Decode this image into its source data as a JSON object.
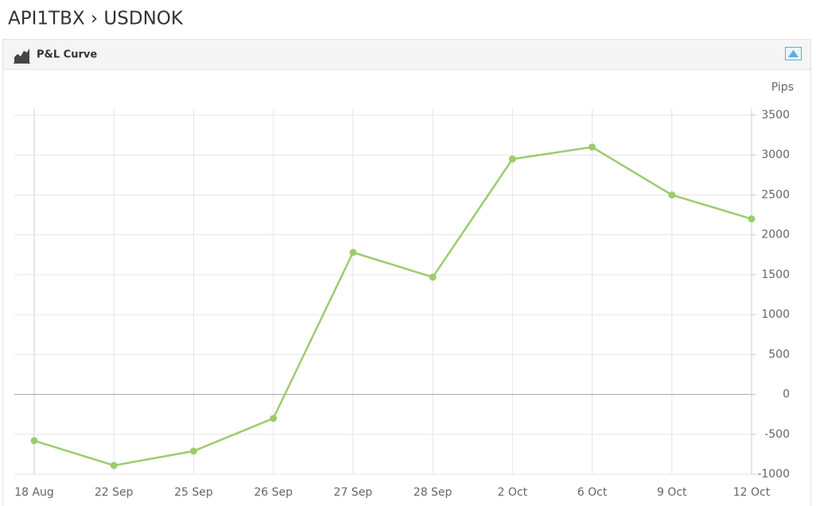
{
  "header": {
    "title": "API1TBX › USDNOK"
  },
  "panel": {
    "title": "P&L Curve"
  },
  "chart_data": {
    "type": "line",
    "y_label": "Pips",
    "categories": [
      "18 Aug",
      "22 Sep",
      "25 Sep",
      "26 Sep",
      "27 Sep",
      "28 Sep",
      "2 Oct",
      "6 Oct",
      "9 Oct",
      "12 Oct"
    ],
    "series": [
      {
        "name": "P&L",
        "color": "#9ccc6e",
        "values": [
          -580,
          -890,
          -710,
          -300,
          1780,
          1470,
          2950,
          3100,
          2500,
          2200
        ]
      }
    ],
    "ylim": [
      -1000,
      3500
    ],
    "yticks": [
      -1000,
      -500,
      0,
      500,
      1000,
      1500,
      2000,
      2500,
      3000,
      3500
    ],
    "grid": true
  }
}
